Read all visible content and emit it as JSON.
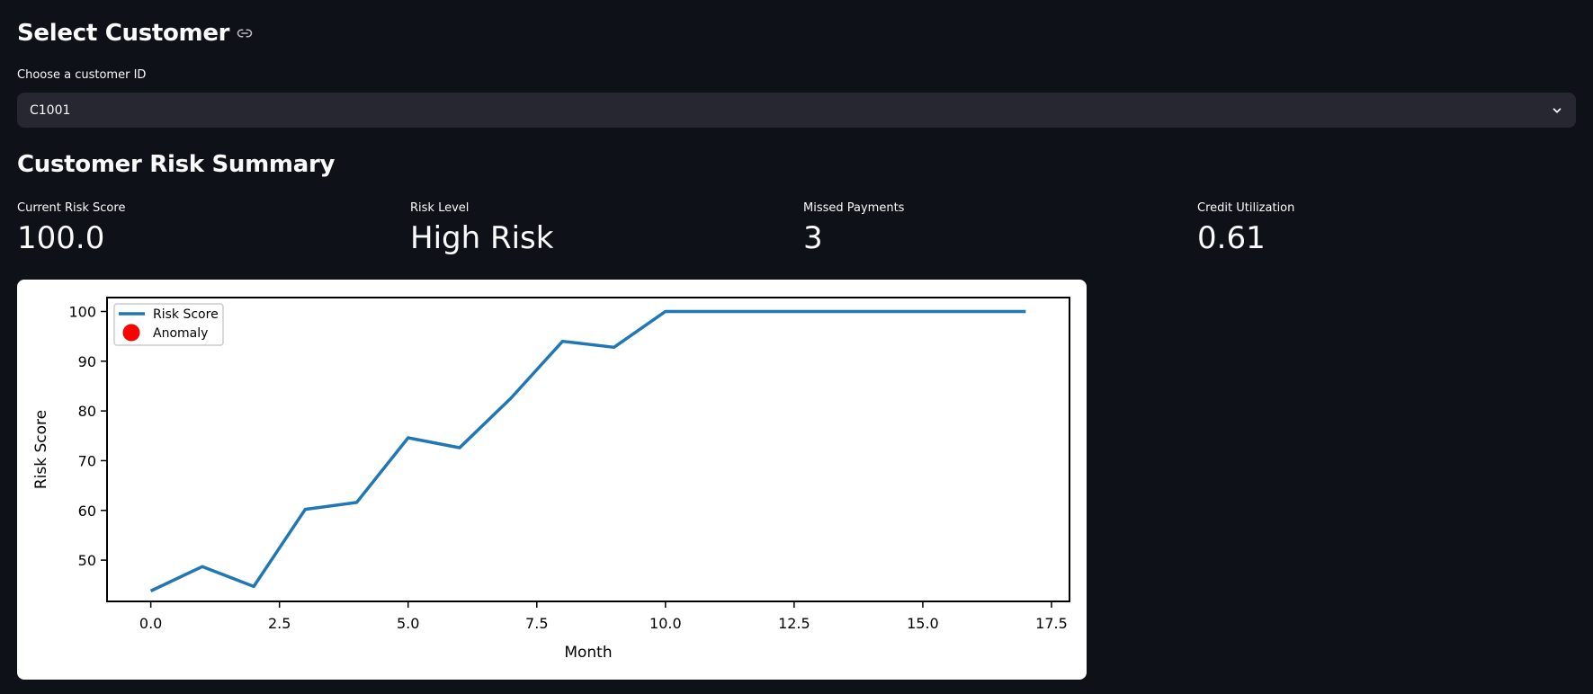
{
  "colors": {
    "background": "#0e1117",
    "select_bg": "#262730",
    "text": "#fafafa",
    "line": "#1f77b4",
    "anomaly": "#ff0000"
  },
  "select_section": {
    "title": "Select Customer",
    "title_icon": "link-icon",
    "field_label": "Choose a customer ID",
    "selected_value": "C1001",
    "dropdown_icon": "chevron-down-icon"
  },
  "summary": {
    "title": "Customer Risk Summary",
    "metrics": [
      {
        "label": "Current Risk Score",
        "value": "100.0"
      },
      {
        "label": "Risk Level",
        "value": "High Risk"
      },
      {
        "label": "Missed Payments",
        "value": "3"
      },
      {
        "label": "Credit Utilization",
        "value": "0.61"
      }
    ]
  },
  "chart_data": {
    "type": "line",
    "xlabel": "Month",
    "ylabel": "Risk Score",
    "xlim": [
      -0.85,
      17.85
    ],
    "ylim": [
      41.7,
      102.8
    ],
    "xticks": [
      "0.0",
      "2.5",
      "5.0",
      "7.5",
      "10.0",
      "12.5",
      "15.0",
      "17.5"
    ],
    "yticks": [
      "50",
      "60",
      "70",
      "80",
      "90",
      "100"
    ],
    "grid": false,
    "legend": {
      "location": "upper left",
      "entries": [
        "Risk Score",
        "Anomaly"
      ]
    },
    "series": [
      {
        "name": "Risk Score",
        "x": [
          0,
          1,
          2,
          3,
          4,
          5,
          6,
          7,
          8,
          9,
          10,
          11,
          12,
          13,
          14,
          15,
          16,
          17
        ],
        "y": [
          43.8,
          48.7,
          44.7,
          60.2,
          61.6,
          74.6,
          72.6,
          82.6,
          94.0,
          92.8,
          100,
          100,
          100,
          100,
          100,
          100,
          100,
          100
        ]
      },
      {
        "name": "Anomaly",
        "x": [],
        "y": []
      }
    ]
  }
}
